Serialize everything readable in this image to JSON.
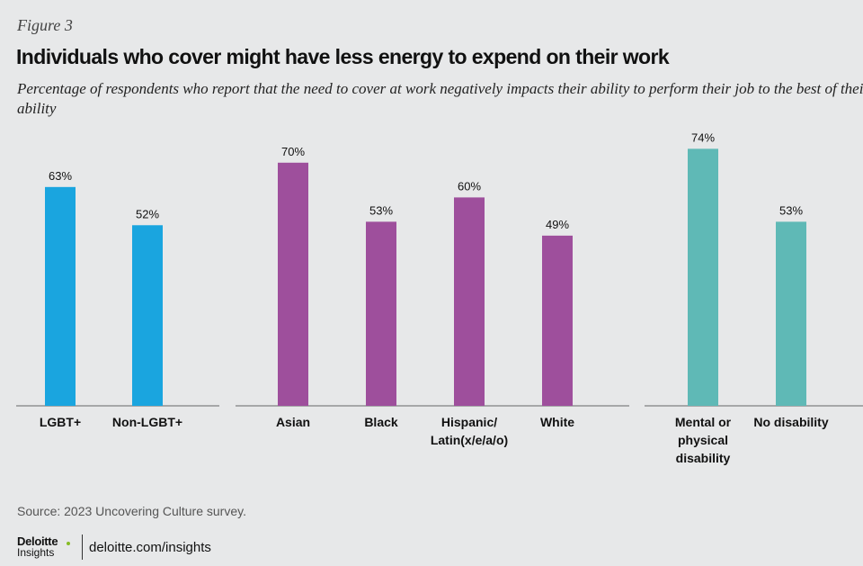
{
  "figure_label": "Figure 3",
  "title": "Individuals who cover might have less energy to expend on their work",
  "subtitle": "Percentage of respondents who report that the need to cover at work negatively impacts their ability to perform their job to the best of their ability",
  "source": "Source: 2023 Uncovering Culture survey.",
  "footer": {
    "logo_main": "Deloitte",
    "logo_sub": "Insights",
    "site": "deloitte.com/insights"
  },
  "colors": {
    "lgbt": "#1aa5df",
    "race": "#9e4f9c",
    "disability": "#5fb9b6",
    "axis": "#666666"
  },
  "chart_data": {
    "type": "bar",
    "unit": "%",
    "ylim": [
      0,
      80
    ],
    "grid": false,
    "legend": "none",
    "groups": [
      {
        "color_key": "lgbt",
        "bars": [
          {
            "category": "LGBT+",
            "label_lines": [
              "LGBT+"
            ],
            "value": 63,
            "value_label": "63%"
          },
          {
            "category": "Non-LGBT+",
            "label_lines": [
              "Non-LGBT+"
            ],
            "value": 52,
            "value_label": "52%"
          }
        ]
      },
      {
        "color_key": "race",
        "bars": [
          {
            "category": "Asian",
            "label_lines": [
              "Asian"
            ],
            "value": 70,
            "value_label": "70%"
          },
          {
            "category": "Black",
            "label_lines": [
              "Black"
            ],
            "value": 53,
            "value_label": "53%"
          },
          {
            "category": "Hispanic/ Latin(x/e/a/o)",
            "label_lines": [
              "Hispanic/",
              "Latin(x/e/a/o)"
            ],
            "value": 60,
            "value_label": "60%"
          },
          {
            "category": "White",
            "label_lines": [
              "White"
            ],
            "value": 49,
            "value_label": "49%"
          }
        ]
      },
      {
        "color_key": "disability",
        "bars": [
          {
            "category": "Mental or physical disability",
            "label_lines": [
              "Mental or",
              "physical",
              "disability"
            ],
            "value": 74,
            "value_label": "74%"
          },
          {
            "category": "No disability",
            "label_lines": [
              "No disability"
            ],
            "value": 53,
            "value_label": "53%"
          }
        ]
      }
    ]
  }
}
